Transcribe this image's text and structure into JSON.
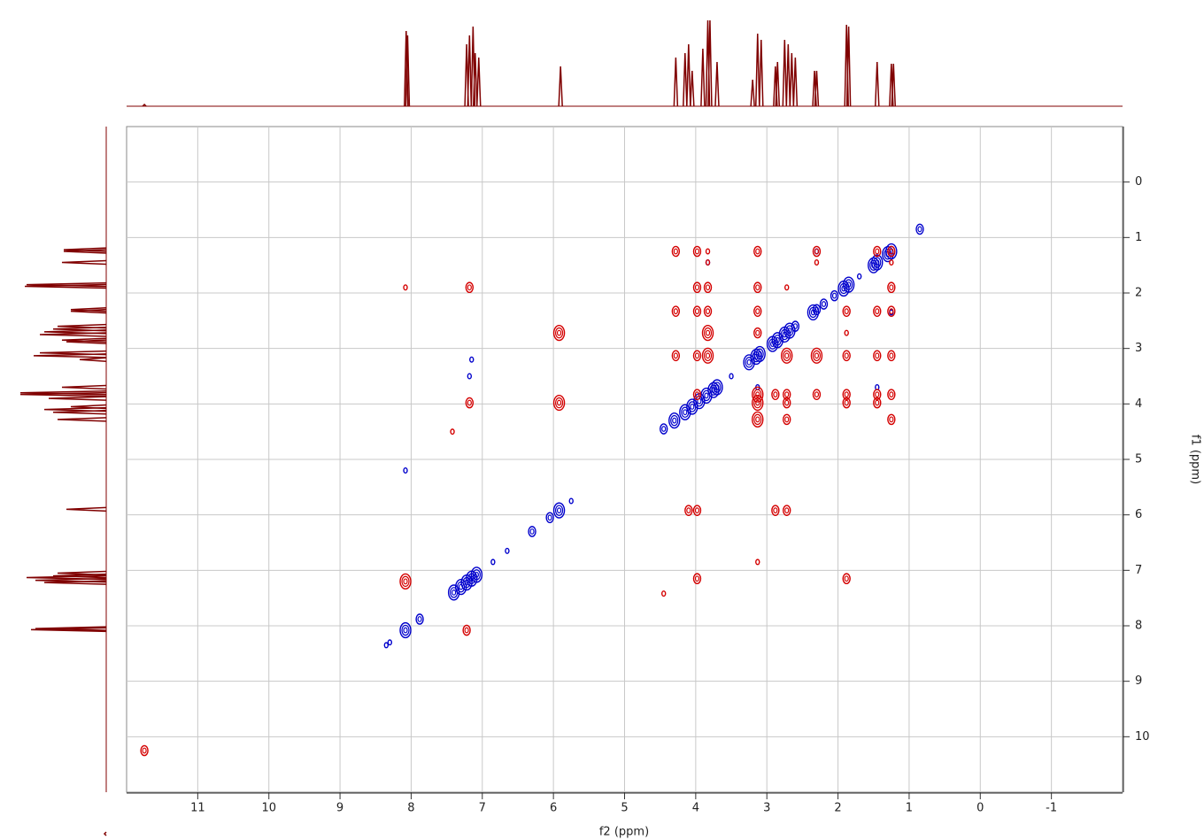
{
  "chart_data": {
    "type": "nmr2d",
    "xlabel": "f2 (ppm)",
    "ylabel": "f1 (ppm)",
    "xlim": [
      12,
      -2
    ],
    "ylim": [
      -1,
      11
    ],
    "xticks": [
      11,
      10,
      9,
      8,
      7,
      6,
      5,
      4,
      3,
      2,
      1,
      0,
      -1
    ],
    "yticks": [
      0,
      1,
      2,
      3,
      4,
      5,
      6,
      7,
      8,
      9,
      10
    ],
    "grid": true,
    "series": [
      {
        "color": "#0000cc",
        "x": [
          8.35,
          8.3,
          8.08,
          7.88,
          7.4,
          7.3,
          7.22,
          7.15,
          7.08,
          6.85,
          6.65,
          6.3,
          6.05,
          5.92,
          5.75,
          4.45,
          4.3,
          4.15,
          4.05,
          3.95,
          3.85,
          3.75,
          3.7,
          3.5,
          3.25,
          3.15,
          3.1,
          2.92,
          2.85,
          2.75,
          2.68,
          2.6,
          2.35,
          2.3,
          2.2,
          2.05,
          1.92,
          1.85,
          1.7,
          1.5,
          1.45,
          1.3,
          1.25,
          0.85,
          8.08,
          7.15,
          7.18,
          1.25,
          1.45,
          2.3,
          3.83,
          3.13
        ],
        "y": [
          8.35,
          8.3,
          8.08,
          7.88,
          7.4,
          7.3,
          7.22,
          7.15,
          7.08,
          6.85,
          6.65,
          6.3,
          6.05,
          5.92,
          5.75,
          4.45,
          4.3,
          4.15,
          4.05,
          3.95,
          3.85,
          3.75,
          3.7,
          3.5,
          3.25,
          3.15,
          3.1,
          2.92,
          2.85,
          2.75,
          2.68,
          2.6,
          2.35,
          2.3,
          2.2,
          2.05,
          1.92,
          1.85,
          1.7,
          1.5,
          1.45,
          1.3,
          1.25,
          0.85,
          5.2,
          3.2,
          3.5,
          2.35,
          3.7,
          1.25,
          1.45,
          3.7
        ],
        "sizes": [
          1,
          1,
          3,
          2,
          3,
          3,
          3,
          3,
          3,
          1,
          1,
          2,
          2,
          3,
          1,
          2,
          3,
          3,
          3,
          3,
          3,
          3,
          3,
          1,
          3,
          3,
          3,
          3,
          3,
          3,
          3,
          2,
          3,
          2,
          2,
          2,
          3,
          3,
          1,
          3,
          3,
          3,
          3,
          2,
          1,
          1,
          1,
          1,
          1,
          1,
          1,
          1
        ]
      },
      {
        "color": "#d40000",
        "x": [
          4.28,
          3.98,
          3.83,
          3.13,
          2.3,
          1.45,
          1.25,
          3.83,
          2.3,
          1.25,
          8.08,
          7.18,
          3.98,
          3.83,
          3.13,
          2.72,
          1.25,
          4.28,
          3.98,
          3.83,
          3.13,
          1.88,
          1.45,
          1.25,
          5.92,
          3.83,
          3.13,
          1.88,
          4.28,
          3.98,
          3.83,
          2.72,
          2.3,
          1.88,
          1.45,
          1.25,
          3.98,
          3.13,
          2.88,
          2.72,
          2.3,
          1.88,
          1.45,
          1.25,
          7.18,
          5.92,
          3.13,
          2.72,
          1.88,
          1.45,
          3.13,
          2.72,
          1.25,
          4.1,
          3.98,
          2.88,
          2.72,
          3.13,
          8.08,
          3.98,
          1.88,
          7.22,
          11.75,
          4.45,
          7.42
        ],
        "y": [
          1.25,
          1.25,
          1.25,
          1.25,
          1.25,
          1.25,
          1.25,
          1.45,
          1.45,
          1.45,
          1.9,
          1.9,
          1.9,
          1.9,
          1.9,
          1.9,
          1.9,
          2.33,
          2.33,
          2.33,
          2.33,
          2.33,
          2.33,
          2.33,
          2.72,
          2.72,
          2.72,
          2.72,
          3.13,
          3.13,
          3.13,
          3.13,
          3.13,
          3.13,
          3.13,
          3.13,
          3.83,
          3.83,
          3.83,
          3.83,
          3.83,
          3.83,
          3.83,
          3.83,
          3.98,
          3.98,
          3.98,
          3.98,
          3.98,
          3.98,
          4.28,
          4.28,
          4.28,
          5.92,
          5.92,
          5.92,
          5.92,
          6.85,
          7.2,
          7.15,
          7.15,
          8.08,
          10.25,
          7.42,
          4.5
        ],
        "sizes": [
          2,
          2,
          1,
          2,
          2,
          2,
          2,
          1,
          1,
          1,
          1,
          2,
          2,
          2,
          2,
          1,
          2,
          2,
          2,
          2,
          2,
          2,
          2,
          2,
          3,
          3,
          2,
          1,
          2,
          2,
          3,
          3,
          3,
          2,
          2,
          2,
          2,
          3,
          2,
          2,
          2,
          2,
          2,
          2,
          2,
          3,
          3,
          2,
          2,
          2,
          3,
          2,
          2,
          2,
          2,
          2,
          2,
          1,
          3,
          2,
          2,
          2,
          2,
          1,
          1
        ]
      }
    ],
    "projection": {
      "color": "#800000",
      "peaks_ppm": [
        11.75,
        8.07,
        8.05,
        7.22,
        7.18,
        7.13,
        7.1,
        7.05,
        5.9,
        4.28,
        4.15,
        4.1,
        4.05,
        3.9,
        3.83,
        3.8,
        3.7,
        3.2,
        3.13,
        3.08,
        2.88,
        2.85,
        2.75,
        2.7,
        2.65,
        2.6,
        2.33,
        2.3,
        1.88,
        1.85,
        1.45,
        1.25,
        1.22
      ],
      "heights": [
        2,
        85,
        80,
        70,
        80,
        90,
        60,
        55,
        45,
        55,
        60,
        70,
        40,
        65,
        97,
        97,
        50,
        30,
        82,
        75,
        45,
        50,
        75,
        70,
        60,
        55,
        40,
        40,
        92,
        90,
        50,
        48,
        48
      ]
    }
  }
}
